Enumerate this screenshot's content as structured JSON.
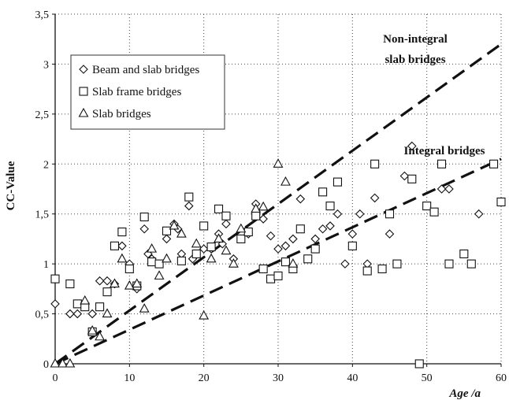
{
  "chart_data": {
    "type": "scatter",
    "title": "",
    "xlabel": "Age /a",
    "ylabel": "CC-Value",
    "xlim": [
      0,
      60
    ],
    "ylim": [
      0,
      3.5
    ],
    "x_ticks": [
      "0",
      "10",
      "20",
      "30",
      "40",
      "50",
      "60"
    ],
    "y_ticks": [
      "0",
      "0,5",
      "1",
      "1,5",
      "2",
      "2,5",
      "3",
      "3,5"
    ],
    "grid": "dotted",
    "legend_position": "top-left",
    "series": [
      {
        "name": "Beam and slab bridges",
        "marker": "diamond",
        "points": [
          [
            0,
            0.6
          ],
          [
            2,
            0.5
          ],
          [
            3,
            0.5
          ],
          [
            4,
            0.6
          ],
          [
            5,
            0.5
          ],
          [
            6,
            0.83
          ],
          [
            7,
            0.83
          ],
          [
            8,
            0.8
          ],
          [
            9,
            1.18
          ],
          [
            10,
            1.0
          ],
          [
            11,
            0.75
          ],
          [
            12,
            1.35
          ],
          [
            12.5,
            1.1
          ],
          [
            13,
            1.05
          ],
          [
            15,
            1.25
          ],
          [
            16,
            1.4
          ],
          [
            16.5,
            1.35
          ],
          [
            17,
            1.1
          ],
          [
            18,
            1.58
          ],
          [
            18.5,
            1.05
          ],
          [
            20,
            1.15
          ],
          [
            21,
            1.15
          ],
          [
            22,
            1.3
          ],
          [
            22.5,
            1.2
          ],
          [
            23,
            1.4
          ],
          [
            24,
            1.05
          ],
          [
            26,
            1.3
          ],
          [
            27,
            1.6
          ],
          [
            28,
            1.45
          ],
          [
            29,
            1.28
          ],
          [
            30,
            1.15
          ],
          [
            31,
            1.18
          ],
          [
            32,
            1.25
          ],
          [
            33,
            1.65
          ],
          [
            35,
            1.25
          ],
          [
            36,
            1.35
          ],
          [
            37,
            1.38
          ],
          [
            38,
            1.5
          ],
          [
            39,
            1.0
          ],
          [
            40,
            1.3
          ],
          [
            41,
            1.5
          ],
          [
            42,
            1.0
          ],
          [
            43,
            1.66
          ],
          [
            45,
            1.3
          ],
          [
            47,
            1.88
          ],
          [
            48,
            2.18
          ],
          [
            52,
            1.75
          ],
          [
            53,
            1.75
          ],
          [
            57,
            1.5
          ]
        ]
      },
      {
        "name": "Slab frame bridges",
        "marker": "square",
        "points": [
          [
            0,
            0.85
          ],
          [
            2,
            0.8
          ],
          [
            3,
            0.6
          ],
          [
            4,
            0.57
          ],
          [
            5,
            0.32
          ],
          [
            6,
            0.57
          ],
          [
            7,
            0.72
          ],
          [
            8,
            1.18
          ],
          [
            9,
            1.32
          ],
          [
            10,
            0.95
          ],
          [
            11,
            0.78
          ],
          [
            12,
            1.47
          ],
          [
            13,
            1.02
          ],
          [
            14,
            1.0
          ],
          [
            15,
            1.33
          ],
          [
            17,
            1.03
          ],
          [
            18,
            1.67
          ],
          [
            19,
            1.1
          ],
          [
            20,
            1.38
          ],
          [
            21,
            1.17
          ],
          [
            22,
            1.55
          ],
          [
            23,
            1.48
          ],
          [
            25,
            1.25
          ],
          [
            26,
            1.32
          ],
          [
            27,
            1.48
          ],
          [
            28,
            0.95
          ],
          [
            29,
            0.85
          ],
          [
            30,
            0.88
          ],
          [
            31,
            1.02
          ],
          [
            32,
            0.95
          ],
          [
            33,
            1.35
          ],
          [
            34,
            1.05
          ],
          [
            35,
            1.15
          ],
          [
            36,
            1.72
          ],
          [
            37,
            1.58
          ],
          [
            38,
            1.82
          ],
          [
            40,
            1.18
          ],
          [
            42,
            0.93
          ],
          [
            43,
            2.0
          ],
          [
            44,
            0.95
          ],
          [
            45,
            1.5
          ],
          [
            46,
            1.0
          ],
          [
            48,
            1.85
          ],
          [
            49,
            0.0
          ],
          [
            50,
            1.58
          ],
          [
            51,
            1.52
          ],
          [
            52,
            2.0
          ],
          [
            53,
            1.0
          ],
          [
            55,
            1.1
          ],
          [
            56,
            1.0
          ],
          [
            59,
            2.0
          ],
          [
            60,
            1.62
          ]
        ]
      },
      {
        "name": "Slab bridges",
        "marker": "triangle",
        "points": [
          [
            0,
            0.0
          ],
          [
            1,
            0.0
          ],
          [
            2,
            0.0
          ],
          [
            4,
            0.63
          ],
          [
            5,
            0.33
          ],
          [
            6,
            0.27
          ],
          [
            7,
            0.5
          ],
          [
            8,
            0.8
          ],
          [
            9,
            1.05
          ],
          [
            10,
            0.78
          ],
          [
            11,
            0.8
          ],
          [
            12,
            0.55
          ],
          [
            13,
            1.15
          ],
          [
            14,
            0.88
          ],
          [
            15,
            1.05
          ],
          [
            16,
            1.38
          ],
          [
            17,
            1.3
          ],
          [
            19,
            1.2
          ],
          [
            20,
            0.48
          ],
          [
            21,
            1.05
          ],
          [
            22,
            1.25
          ],
          [
            23,
            1.13
          ],
          [
            24,
            1.0
          ],
          [
            25,
            1.35
          ],
          [
            27,
            1.55
          ],
          [
            28,
            1.57
          ],
          [
            30,
            2.0
          ],
          [
            31,
            1.82
          ],
          [
            32,
            1.0
          ]
        ]
      }
    ],
    "trend_lines": [
      {
        "name": "Non-integral slab bridges",
        "label": "Non-integral\nslab bridges",
        "points": [
          [
            0,
            0.0
          ],
          [
            60,
            3.2
          ]
        ],
        "style": "dashed"
      },
      {
        "name": "Integral bridges",
        "label": "Integral bridges",
        "points": [
          [
            0,
            0.0
          ],
          [
            60,
            2.05
          ]
        ],
        "style": "dashed"
      }
    ]
  }
}
